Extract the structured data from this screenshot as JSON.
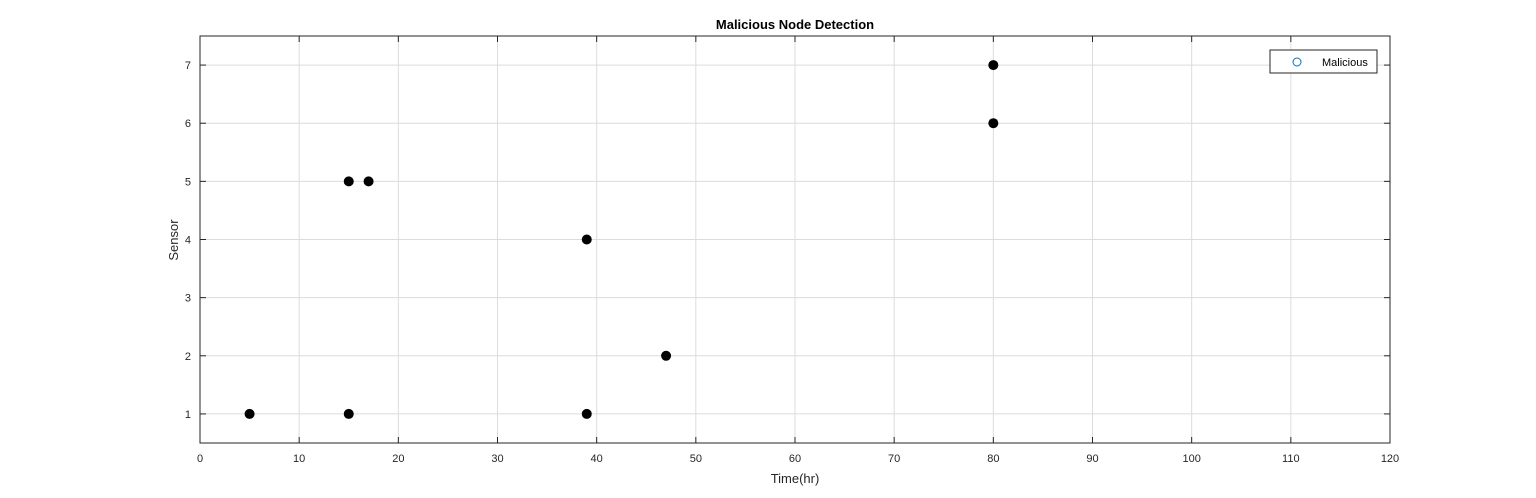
{
  "chart_data": {
    "type": "scatter",
    "title": "Malicious Node Detection",
    "xlabel": "Time(hr)",
    "ylabel": "Sensor",
    "xlim": [
      0,
      120
    ],
    "ylim": [
      0.5,
      7.5
    ],
    "xticks": [
      0,
      10,
      20,
      30,
      40,
      50,
      60,
      70,
      80,
      90,
      100,
      110,
      120
    ],
    "yticks": [
      1,
      2,
      3,
      4,
      5,
      6,
      7
    ],
    "grid": true,
    "legend_position": "top-right",
    "series": [
      {
        "name": "Malicious",
        "marker": "filled-circle",
        "color": "#000000",
        "legend_marker_color": "#0072BD",
        "points": [
          {
            "x": 5,
            "y": 1
          },
          {
            "x": 15,
            "y": 1
          },
          {
            "x": 15,
            "y": 5
          },
          {
            "x": 17,
            "y": 5
          },
          {
            "x": 39,
            "y": 4
          },
          {
            "x": 39,
            "y": 1
          },
          {
            "x": 47,
            "y": 2
          },
          {
            "x": 80,
            "y": 7
          },
          {
            "x": 80,
            "y": 6
          }
        ]
      }
    ]
  }
}
